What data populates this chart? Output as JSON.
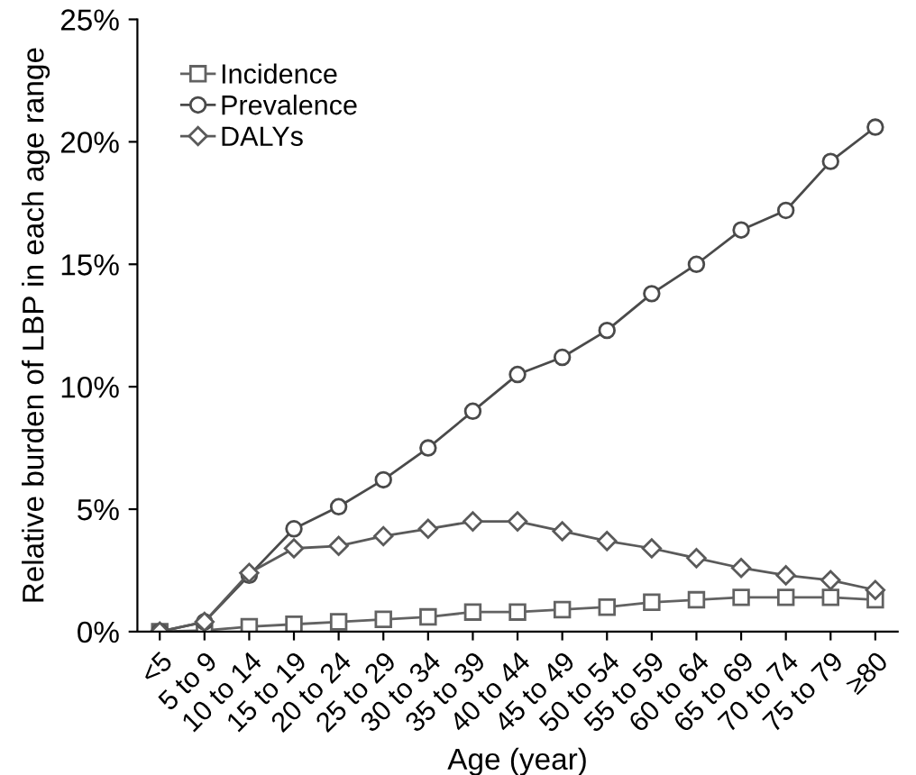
{
  "chart_data": {
    "type": "line",
    "xlabel": "Age (year)",
    "ylabel": "Relative burden of LBP in each age range",
    "categories": [
      "<5",
      "5 to 9",
      "10 to 14",
      "15 to 19",
      "20 to 24",
      "25 to 29",
      "30 to 34",
      "35 to 39",
      "40 to 44",
      "45 to 49",
      "50 to 54",
      "55 to 59",
      "60 to 64",
      "65 to 69",
      "70 to 74",
      "75 to 79",
      "≥80"
    ],
    "series": [
      {
        "name": "Incidence",
        "color": "#626262",
        "marker": "square",
        "values": [
          0,
          0.05,
          0.2,
          0.3,
          0.4,
          0.5,
          0.6,
          0.8,
          0.8,
          0.9,
          1.0,
          1.2,
          1.3,
          1.4,
          1.4,
          1.4,
          1.3
        ]
      },
      {
        "name": "Prevalence",
        "color": "#4a4a4a",
        "marker": "circle",
        "values": [
          0,
          0.4,
          2.3,
          4.2,
          5.1,
          6.2,
          7.5,
          9.0,
          10.5,
          11.2,
          12.3,
          13.8,
          15.0,
          16.4,
          17.2,
          19.2,
          20.6
        ]
      },
      {
        "name": "DALYs",
        "color": "#5a5a5a",
        "marker": "diamond",
        "values": [
          0,
          0.4,
          2.4,
          3.4,
          3.5,
          3.9,
          4.2,
          4.5,
          4.5,
          4.1,
          3.7,
          3.4,
          3.0,
          2.6,
          2.3,
          2.1,
          1.7
        ]
      }
    ],
    "ylim": [
      0,
      25
    ],
    "yticks": [
      {
        "value": 0,
        "label": "0%"
      },
      {
        "value": 5,
        "label": "5%"
      },
      {
        "value": 10,
        "label": "10%"
      },
      {
        "value": 15,
        "label": "15%"
      },
      {
        "value": 20,
        "label": "20%"
      },
      {
        "value": 25,
        "label": "25%"
      }
    ],
    "grid": false,
    "legend": "top left",
    "line_style": "solid"
  }
}
